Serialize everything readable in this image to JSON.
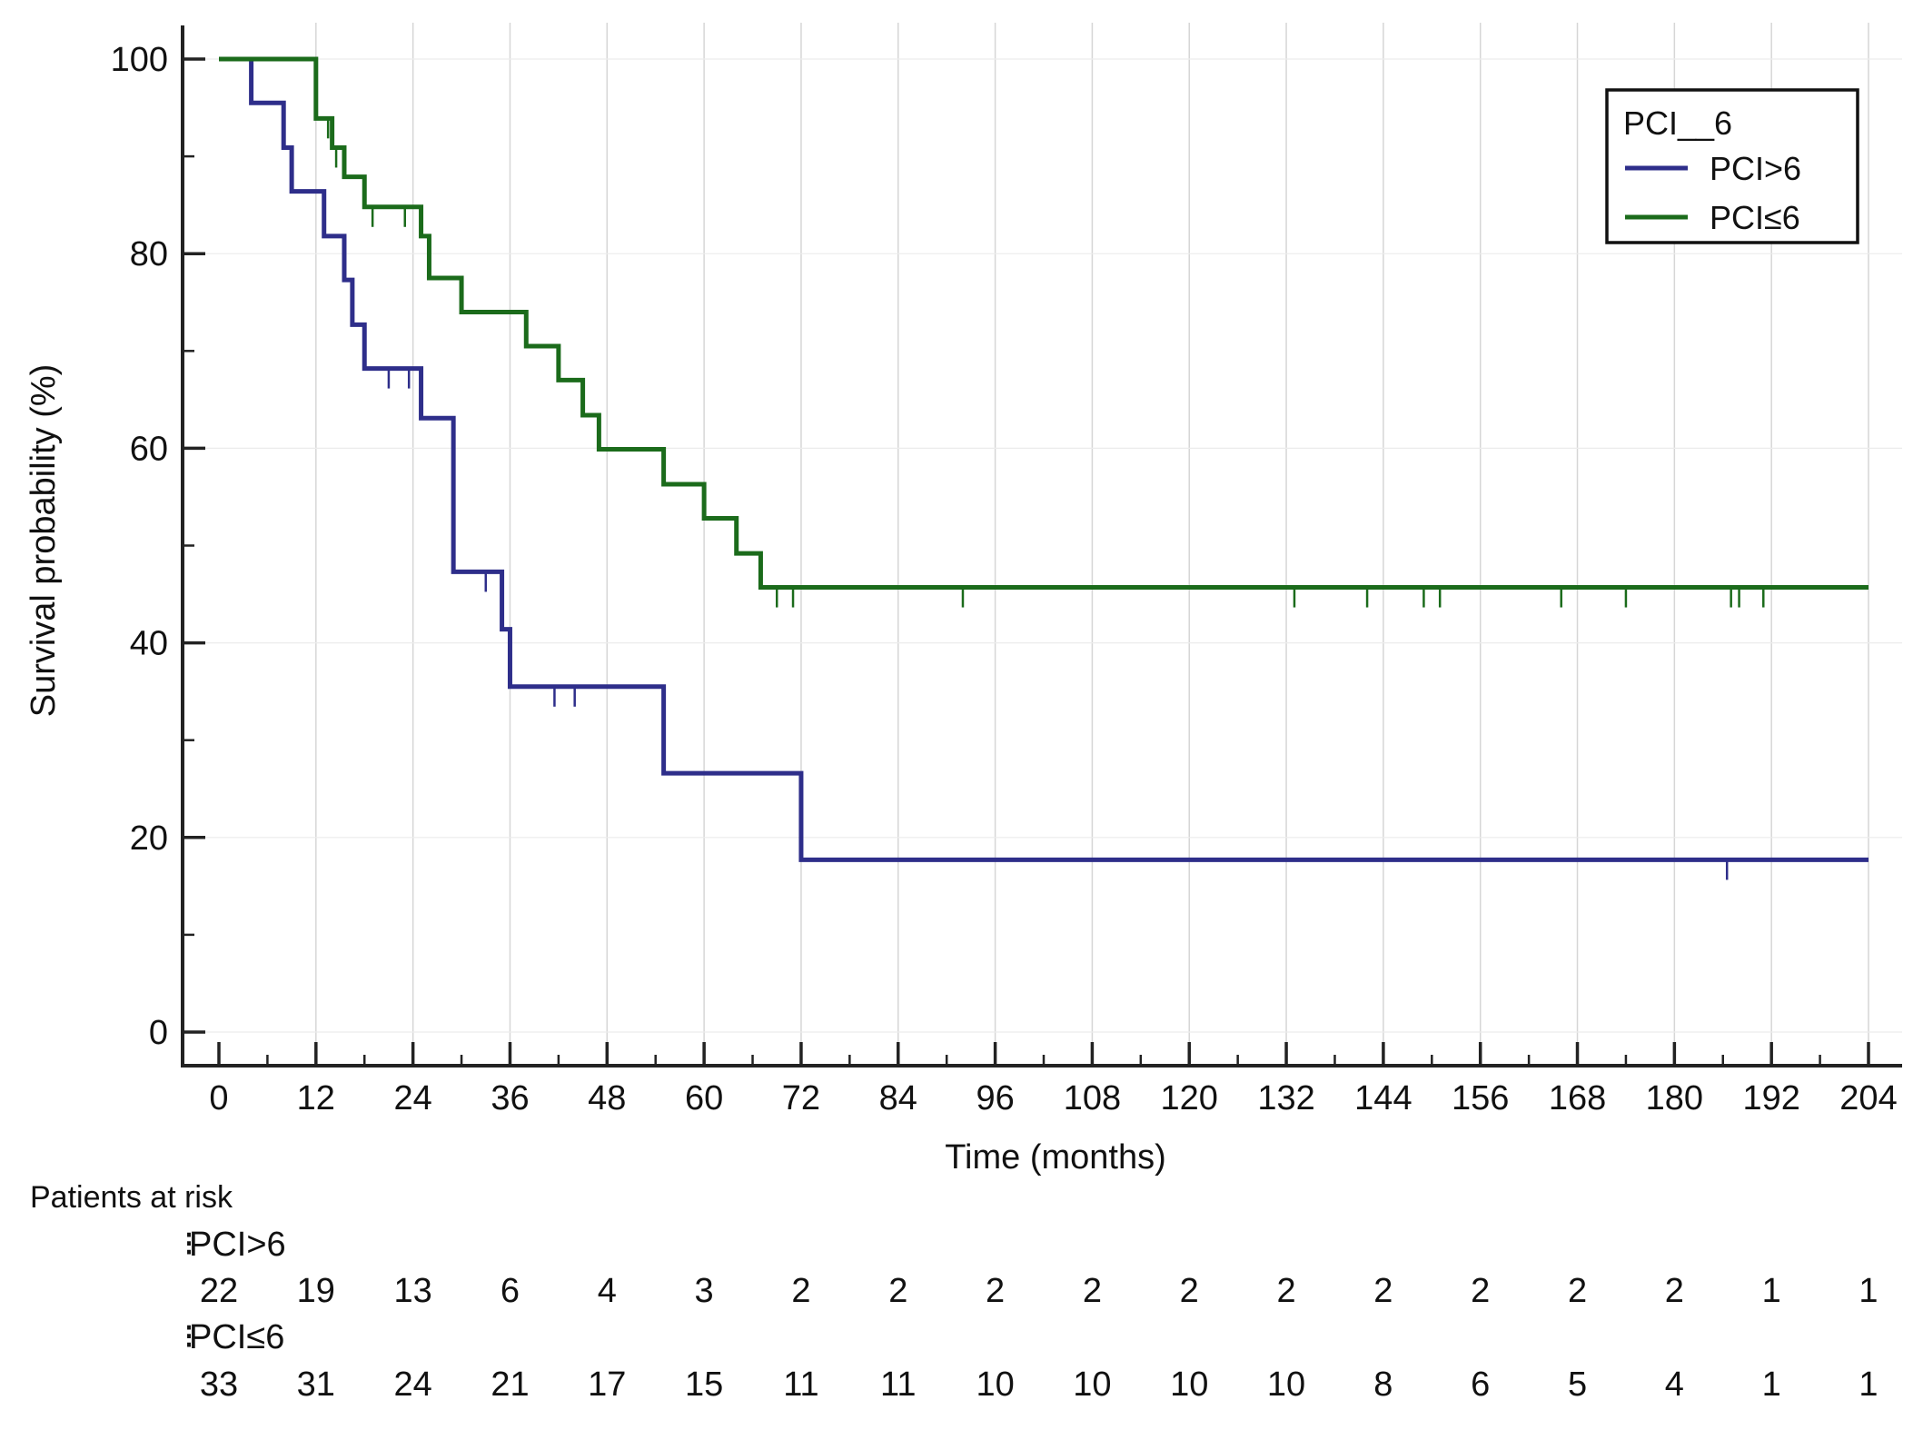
{
  "chart_data": {
    "type": "line",
    "subtype": "kaplan-meier step",
    "title": "",
    "xlabel": "Time (months)",
    "ylabel": "Survival probability (%)",
    "xlim": [
      0,
      204
    ],
    "ylim": [
      0,
      100
    ],
    "x_ticks": [
      0,
      12,
      24,
      36,
      48,
      60,
      72,
      84,
      96,
      108,
      120,
      132,
      144,
      156,
      168,
      180,
      192,
      204
    ],
    "y_ticks": [
      0,
      20,
      40,
      60,
      80,
      100
    ],
    "y_minor_ticks": [
      10,
      30,
      50,
      70,
      90
    ],
    "grid": "vertical lines at x ticks",
    "legend": {
      "title": "PCI__6",
      "position": "top-right",
      "entries": [
        "PCI>6",
        "PCI≤6"
      ]
    },
    "series": [
      {
        "name": "PCI>6",
        "color": "#2e2e8a",
        "steps": [
          [
            0,
            100
          ],
          [
            4,
            95.5
          ],
          [
            8,
            90.9
          ],
          [
            9,
            86.4
          ],
          [
            13,
            81.8
          ],
          [
            15.5,
            77.3
          ],
          [
            16.5,
            72.7
          ],
          [
            18,
            68.2
          ],
          [
            25,
            63.1
          ],
          [
            29,
            47.3
          ],
          [
            35,
            41.4
          ],
          [
            36,
            35.5
          ],
          [
            55,
            26.6
          ],
          [
            72,
            17.7
          ],
          [
            204,
            17.7
          ]
        ],
        "censored": [
          [
            21,
            68.2
          ],
          [
            23.5,
            68.2
          ],
          [
            33,
            47.3
          ],
          [
            41.5,
            35.5
          ],
          [
            44,
            35.5
          ],
          [
            186.5,
            17.7
          ]
        ]
      },
      {
        "name": "PCI≤6",
        "color": "#1b6b1b",
        "steps": [
          [
            0,
            100
          ],
          [
            12,
            93.9
          ],
          [
            14,
            90.9
          ],
          [
            15.5,
            87.9
          ],
          [
            18,
            84.8
          ],
          [
            25,
            81.8
          ],
          [
            26,
            77.5
          ],
          [
            30,
            74.0
          ],
          [
            38,
            70.5
          ],
          [
            42,
            67.0
          ],
          [
            45,
            63.4
          ],
          [
            47,
            59.9
          ],
          [
            55,
            56.3
          ],
          [
            60,
            52.8
          ],
          [
            64,
            49.2
          ],
          [
            67,
            45.7
          ],
          [
            204,
            45.7
          ]
        ],
        "censored": [
          [
            13.5,
            93.9
          ],
          [
            14.5,
            90.9
          ],
          [
            19,
            84.8
          ],
          [
            23,
            84.8
          ],
          [
            69,
            45.7
          ],
          [
            71,
            45.7
          ],
          [
            92,
            45.7
          ],
          [
            133,
            45.7
          ],
          [
            142,
            45.7
          ],
          [
            149,
            45.7
          ],
          [
            151,
            45.7
          ],
          [
            166,
            45.7
          ],
          [
            174,
            45.7
          ],
          [
            187,
            45.7
          ],
          [
            188,
            45.7
          ],
          [
            191,
            45.7
          ]
        ]
      }
    ],
    "at_risk": {
      "title": "Patients at risk",
      "rows": [
        {
          "label": "PCI>6",
          "values": [
            22,
            19,
            13,
            6,
            4,
            3,
            2,
            2,
            2,
            2,
            2,
            2,
            2,
            2,
            2,
            2,
            1,
            1
          ]
        },
        {
          "label": "PCI≤6",
          "values": [
            33,
            31,
            24,
            21,
            17,
            15,
            11,
            11,
            10,
            10,
            10,
            10,
            8,
            6,
            5,
            4,
            1,
            1
          ]
        }
      ]
    }
  }
}
